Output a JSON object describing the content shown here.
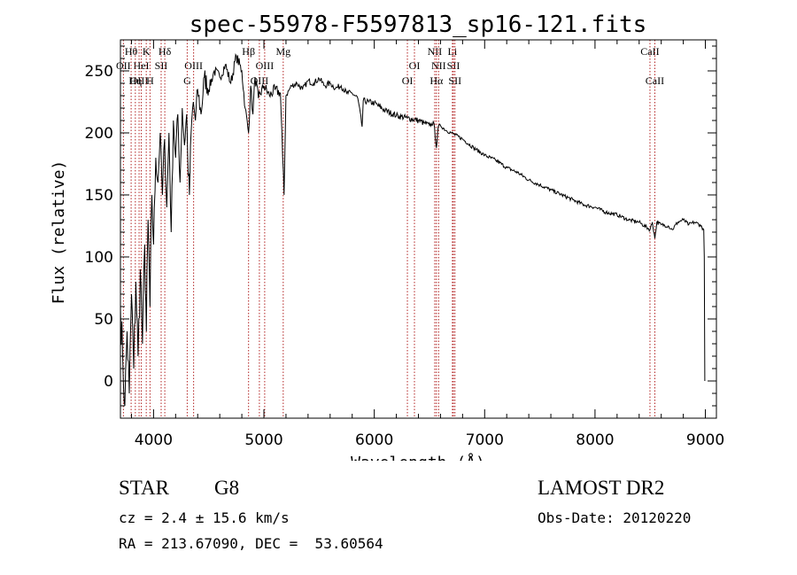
{
  "chart_data": {
    "type": "line",
    "title": "spec-55978-F5597813_sp16-121.fits",
    "xlabel": "Wavelength (Å)",
    "ylabel": "Flux (relative)",
    "xlim": [
      3700,
      9100
    ],
    "ylim": [
      -30,
      275
    ],
    "xticks": [
      4000,
      5000,
      6000,
      7000,
      8000,
      9000
    ],
    "yticks": [
      0,
      50,
      100,
      150,
      200,
      250
    ],
    "grid": false,
    "series": [
      {
        "x": [
          3700,
          3720,
          3740,
          3760,
          3780,
          3800,
          3820,
          3840,
          3860,
          3880,
          3900,
          3920,
          3935,
          3950,
          3968,
          3985,
          4000,
          4020,
          4040,
          4060,
          4080,
          4100,
          4120,
          4140,
          4160,
          4180,
          4200,
          4220,
          4240,
          4260,
          4280,
          4300,
          4310,
          4325,
          4340,
          4360,
          4380,
          4400,
          4430,
          4460,
          4500,
          4550,
          4600,
          4650,
          4700,
          4750,
          4800,
          4830,
          4861,
          4880,
          4900,
          4920,
          4950,
          5000,
          5050,
          5100,
          5150,
          5170,
          5183,
          5200,
          5250,
          5300,
          5350,
          5400,
          5450,
          5500,
          5550,
          5600,
          5650,
          5700,
          5750,
          5800,
          5850,
          5890,
          5900,
          5950,
          6000,
          6100,
          6200,
          6300,
          6400,
          6450,
          6500,
          6540,
          6563,
          6580,
          6600,
          6650,
          6700,
          6800,
          6900,
          7000,
          7100,
          7200,
          7300,
          7400,
          7500,
          7600,
          7700,
          7800,
          7900,
          8000,
          8100,
          8200,
          8300,
          8400,
          8498,
          8520,
          8542,
          8560,
          8600,
          8662,
          8700,
          8750,
          8800,
          8850,
          8900,
          8950,
          8985,
          8990,
          8995
        ],
        "y": [
          60,
          20,
          -20,
          40,
          -10,
          70,
          10,
          80,
          20,
          90,
          30,
          110,
          40,
          130,
          60,
          150,
          110,
          180,
          160,
          200,
          150,
          195,
          140,
          200,
          120,
          210,
          180,
          215,
          160,
          220,
          190,
          215,
          180,
          150,
          200,
          225,
          210,
          235,
          215,
          245,
          235,
          250,
          245,
          255,
          240,
          262,
          250,
          220,
          200,
          238,
          215,
          245,
          228,
          238,
          230,
          235,
          232,
          180,
          150,
          230,
          238,
          240,
          235,
          242,
          240,
          244,
          238,
          240,
          236,
          238,
          232,
          232,
          228,
          205,
          226,
          225,
          224,
          218,
          214,
          212,
          210,
          208,
          206,
          208,
          188,
          205,
          206,
          202,
          200,
          195,
          188,
          182,
          178,
          172,
          168,
          162,
          158,
          154,
          150,
          146,
          142,
          140,
          136,
          134,
          130,
          128,
          122,
          128,
          115,
          128,
          126,
          125,
          122,
          128,
          130,
          126,
          128,
          126,
          122,
          100,
          0
        ]
      }
    ],
    "lines": [
      {
        "label": "Hθ",
        "x": 3797,
        "row": 1
      },
      {
        "label": "OII",
        "x": 3727,
        "row": 2
      },
      {
        "label": "OIII",
        "x": 3869,
        "row": 3
      },
      {
        "label": "HeI",
        "x": 3889,
        "row": 2
      },
      {
        "label": "Hη",
        "x": 3835,
        "row": 3
      },
      {
        "label": "K",
        "x": 3934,
        "row": 1
      },
      {
        "label": "SII",
        "x": 4069,
        "row": 2
      },
      {
        "label": "H",
        "x": 3968,
        "row": 3
      },
      {
        "label": "Hδ",
        "x": 4102,
        "row": 1
      },
      {
        "label": "OIII",
        "x": 4363,
        "row": 2
      },
      {
        "label": "G",
        "x": 4305,
        "row": 3
      },
      {
        "label": "Hβ",
        "x": 4861,
        "row": 1
      },
      {
        "label": "OIII",
        "x": 5007,
        "row": 2
      },
      {
        "label": "OIII",
        "x": 4959,
        "row": 3
      },
      {
        "label": "Mg",
        "x": 5175,
        "row": 1
      },
      {
        "label": "OI",
        "x": 6364,
        "row": 2
      },
      {
        "label": "OI",
        "x": 6300,
        "row": 3
      },
      {
        "label": "NII",
        "x": 6548,
        "row": 1
      },
      {
        "label": "NII",
        "x": 6583,
        "row": 2
      },
      {
        "label": "Hα",
        "x": 6563,
        "row": 3
      },
      {
        "label": "Li",
        "x": 6708,
        "row": 1
      },
      {
        "label": "SII",
        "x": 6717,
        "row": 2
      },
      {
        "label": "SII",
        "x": 6731,
        "row": 3
      },
      {
        "label": "CaII",
        "x": 8498,
        "row": 1
      },
      {
        "label": "CaII",
        "x": 8542,
        "row": 3
      }
    ]
  },
  "footer": {
    "class_label": "STAR",
    "subclass": "G8",
    "survey": "LAMOST DR2",
    "cz": "cz = 2.4 ± 15.6 km/s",
    "obs_date": "Obs-Date: 20120220",
    "coords": "RA = 213.67090, DEC =  53.60564"
  }
}
